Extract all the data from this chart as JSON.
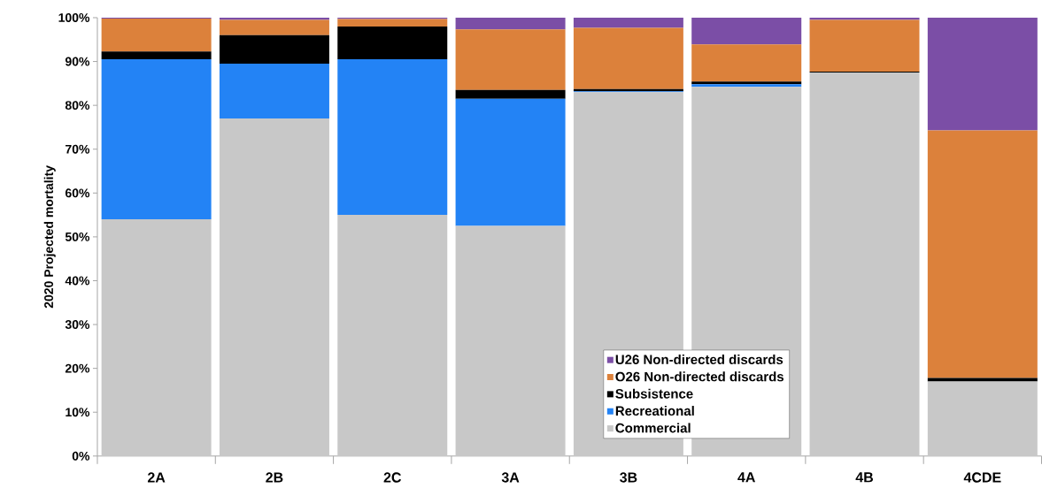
{
  "chart_data": {
    "type": "bar",
    "stacked": true,
    "ylabel": "2020 Projected mortality",
    "categories": [
      "2A",
      "2B",
      "2C",
      "3A",
      "3B",
      "4A",
      "4B",
      "4CDE"
    ],
    "series": [
      {
        "name": "Commercial",
        "color": "#c8c8c8",
        "values": [
          54,
          77,
          55,
          52.5,
          83,
          84.2,
          87.5,
          17
        ]
      },
      {
        "name": "Recreational",
        "color": "#2383f5",
        "values": [
          36.5,
          12.5,
          35.5,
          29,
          0.2,
          0.6,
          0,
          0
        ]
      },
      {
        "name": "Subsistence",
        "color": "#000000",
        "values": [
          1.8,
          6.5,
          7.5,
          2,
          0.5,
          0.6,
          0.2,
          0.8
        ]
      },
      {
        "name": "O26 Non-directed discards",
        "color": "#dc813b",
        "values": [
          7.5,
          3.5,
          1.7,
          13.8,
          14,
          8.5,
          11.8,
          56.5
        ]
      },
      {
        "name": "U26 Non-directed discards",
        "color": "#7b4ea6",
        "values": [
          0.2,
          0.5,
          0.3,
          2.7,
          2.3,
          6.1,
          0.5,
          25.7
        ]
      }
    ],
    "ylim": [
      0,
      100
    ],
    "yticks": [
      {
        "value": 0,
        "label": "0%"
      },
      {
        "value": 10,
        "label": "10%"
      },
      {
        "value": 20,
        "label": "20%"
      },
      {
        "value": 30,
        "label": "30%"
      },
      {
        "value": 40,
        "label": "40%"
      },
      {
        "value": 50,
        "label": "50%"
      },
      {
        "value": 60,
        "label": "60%"
      },
      {
        "value": 70,
        "label": "70%"
      },
      {
        "value": 80,
        "label": "80%"
      },
      {
        "value": 90,
        "label": "90%"
      },
      {
        "value": 100,
        "label": "100%"
      }
    ],
    "legend": "bottom right",
    "grid": false
  }
}
